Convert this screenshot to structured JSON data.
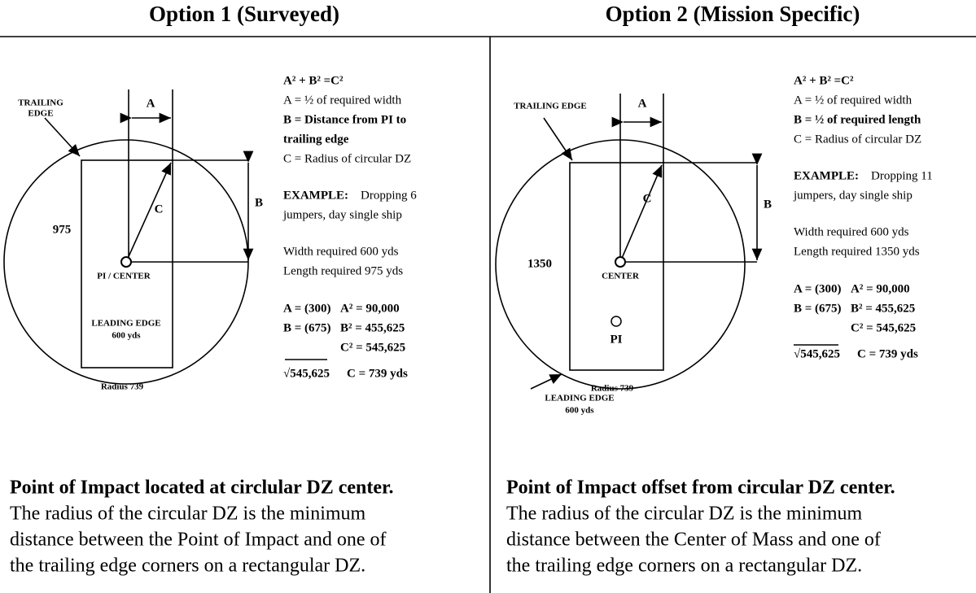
{
  "panels": [
    {
      "title": "Option 1 (Surveyed)",
      "diagram": {
        "trailing_edge": [
          "TRAILING",
          "EDGE"
        ],
        "width_label": "A",
        "height_label": "B",
        "radius_label": "C",
        "length": "975",
        "center": "PI / CENTER",
        "leading_edge": [
          "LEADING EDGE",
          "600 yds"
        ],
        "radius": "Radius 739"
      },
      "formula": "A² + B² =C²",
      "definitions": [
        "A = ½ of required width",
        "B = Distance from PI to",
        "trailing edge",
        "C = Radius of circular DZ"
      ],
      "example": {
        "label": "EXAMPLE:",
        "text": [
          "Dropping 6",
          "jumpers, day single ship"
        ]
      },
      "requirements": [
        "Width required 600 yds",
        "Length required 975 yds"
      ],
      "calculation": {
        "a_given": "A = (300)",
        "a_squared": "A² = 90,000",
        "b_given": "B = (675)",
        "b_squared": "B² = 455,625",
        "c_squared": "C² = 545,625",
        "root": "√545,625",
        "c_result": "C = 739 yds"
      },
      "caption": {
        "heading": "Point of Impact located at circlular DZ center.",
        "body": [
          "The radius of the circular DZ is the minimum",
          "distance between the Point of Impact and one of",
          "the trailing edge corners on a rectangular DZ."
        ]
      }
    },
    {
      "title": "Option 2 (Mission Specific)",
      "diagram": {
        "trailing_edge": [
          "TRAILING EDGE"
        ],
        "width_label": "A",
        "height_label": "B",
        "radius_label": "C",
        "length": "1350",
        "center": "CENTER",
        "pi": "PI",
        "leading_edge": [
          "LEADING EDGE",
          "600 yds"
        ],
        "radius": "Radius 739"
      },
      "formula": "A² + B² =C²",
      "definitions": [
        "A = ½ of required width",
        "B = ½ of required length",
        "C = Radius of circular DZ"
      ],
      "example": {
        "label": "EXAMPLE:",
        "text": [
          "Dropping 11",
          "jumpers, day single ship"
        ]
      },
      "requirements": [
        "Width required 600 yds",
        "Length required 1350 yds"
      ],
      "calculation": {
        "a_given": "A = (300)",
        "a_squared": "A² = 90,000",
        "b_given": "B = (675)",
        "b_squared": "B² = 455,625",
        "c_squared": "C² = 545,625",
        "root": "√545,625",
        "c_result": "C = 739 yds"
      },
      "caption": {
        "heading": "Point of Impact offset from circular DZ center.",
        "body": [
          "The radius of the circular DZ is the minimum",
          "distance between the Center of Mass and one of",
          "the trailing edge corners on a rectangular DZ."
        ]
      }
    }
  ]
}
